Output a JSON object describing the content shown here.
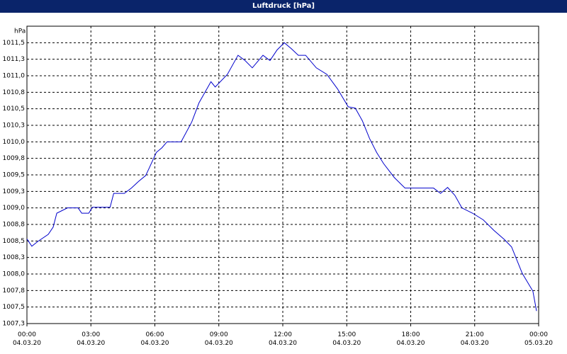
{
  "chart_data": {
    "type": "line",
    "title": "Luftdruck [hPa]",
    "y_label": "hPa",
    "x": [
      0,
      0.23,
      0.5,
      1,
      1.23,
      1.4,
      1.9,
      2.4,
      2.57,
      2.9,
      3.07,
      3.9,
      4.07,
      4.57,
      4.9,
      5.23,
      5.57,
      5.73,
      6.07,
      6.33,
      6.57,
      7.23,
      7.73,
      8.07,
      8.63,
      8.83,
      9.4,
      9.9,
      10.23,
      10.57,
      11.07,
      11.4,
      11.73,
      12.07,
      12.4,
      12.73,
      13.07,
      13.57,
      14.07,
      14.57,
      15.07,
      15.4,
      15.73,
      16.07,
      16.4,
      16.73,
      17.23,
      17.73,
      18.4,
      19.07,
      19.4,
      19.73,
      20.07,
      20.4,
      20.9,
      21.4,
      21.9,
      22.4,
      22.73,
      23.23,
      23.73,
      23.9
    ],
    "series": [
      {
        "name": "Luftdruck",
        "color": "#0000cc",
        "values": [
          1008.53,
          1008.42,
          1008.49,
          1008.6,
          1008.71,
          1008.92,
          1009.0,
          1009.0,
          1008.92,
          1008.92,
          1009.01,
          1009.01,
          1009.22,
          1009.22,
          1009.3,
          1009.4,
          1009.49,
          1009.6,
          1009.84,
          1009.91,
          1010.0,
          1010.0,
          1010.3,
          1010.59,
          1010.91,
          1010.83,
          1011.02,
          1011.31,
          1011.23,
          1011.12,
          1011.31,
          1011.23,
          1011.39,
          1011.5,
          1011.41,
          1011.31,
          1011.31,
          1011.12,
          1011.02,
          1010.8,
          1010.53,
          1010.51,
          1010.32,
          1010.05,
          1009.84,
          1009.67,
          1009.46,
          1009.3,
          1009.3,
          1009.3,
          1009.22,
          1009.31,
          1009.19,
          1009.0,
          1008.92,
          1008.82,
          1008.66,
          1008.52,
          1008.41,
          1008.01,
          1007.74,
          1007.44
        ]
      }
    ],
    "xlim": [
      0,
      24
    ],
    "xticks": [
      {
        "value": 0,
        "label": "00:00\n04.03.20"
      },
      {
        "value": 3,
        "label": "03:00\n04.03.20"
      },
      {
        "value": 6,
        "label": "06:00\n04.03.20"
      },
      {
        "value": 9,
        "label": "09:00\n04.03.20"
      },
      {
        "value": 12,
        "label": "12:00\n04.03.20"
      },
      {
        "value": 15,
        "label": "15:00\n04.03.20"
      },
      {
        "value": 18,
        "label": "18:00\n04.03.20"
      },
      {
        "value": 21,
        "label": "21:00\n04.03.20"
      },
      {
        "value": 24,
        "label": "00:00\n05.03.20"
      }
    ],
    "ylim": [
      1007.25,
      1011.75
    ],
    "yticks": [
      {
        "value": 1007.25,
        "label": "1007,3"
      },
      {
        "value": 1007.5,
        "label": "1007,5"
      },
      {
        "value": 1007.75,
        "label": "1007,8"
      },
      {
        "value": 1008,
        "label": "1008,0"
      },
      {
        "value": 1008.25,
        "label": "1008,3"
      },
      {
        "value": 1008.5,
        "label": "1008,5"
      },
      {
        "value": 1008.75,
        "label": "1008,8"
      },
      {
        "value": 1009,
        "label": "1009,0"
      },
      {
        "value": 1009.25,
        "label": "1009,3"
      },
      {
        "value": 1009.5,
        "label": "1009,5"
      },
      {
        "value": 1009.75,
        "label": "1009,8"
      },
      {
        "value": 1010,
        "label": "1010,0"
      },
      {
        "value": 1010.25,
        "label": "1010,3"
      },
      {
        "value": 1010.5,
        "label": "1010,5"
      },
      {
        "value": 1010.75,
        "label": "1010,8"
      },
      {
        "value": 1011,
        "label": "1011,0"
      },
      {
        "value": 1011.25,
        "label": "1011,3"
      },
      {
        "value": 1011.5,
        "label": "1011,5"
      }
    ],
    "grid": true
  }
}
